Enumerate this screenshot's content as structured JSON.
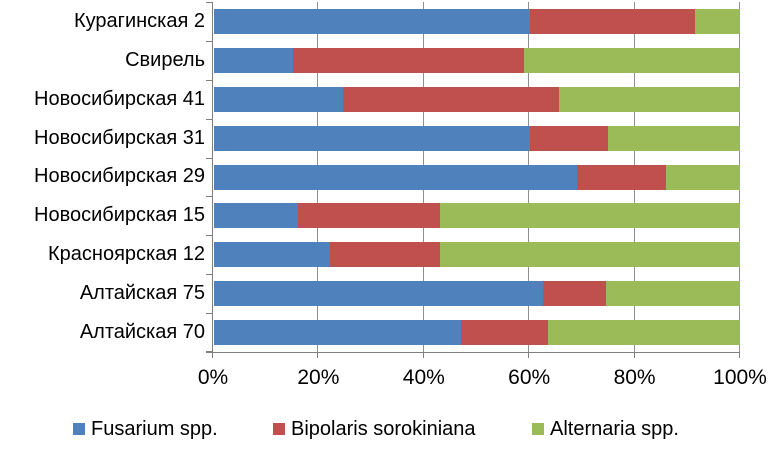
{
  "chart_data": {
    "type": "bar",
    "orientation": "horizontal",
    "stacked": true,
    "unit": "%",
    "title": "",
    "xlabel": "",
    "ylabel": "",
    "categories": [
      "Курагинская 2",
      "Свирель",
      "Новосибирская 41",
      "Новосибирская 31",
      "Новосибирская 29",
      "Новосибирская 15",
      "Красноярская 12",
      "Алтайская 75",
      "Алтайская 70"
    ],
    "series": [
      {
        "name": "Fusarium spp.",
        "color": "#4F81BD",
        "values": [
          60,
          15,
          24.5,
          60,
          69,
          16,
          22,
          62.5,
          47
        ]
      },
      {
        "name": "Bipolaris sorokiniana",
        "color": "#C0504D",
        "values": [
          31.5,
          44,
          41,
          15,
          17,
          27,
          21,
          12,
          16.5
        ]
      },
      {
        "name": "Alternaria spp.",
        "color": "#9BBB59",
        "values": [
          8.5,
          41,
          34.5,
          25,
          14,
          57,
          57,
          25.5,
          36.5
        ]
      }
    ],
    "xlim": [
      0,
      100
    ],
    "x_ticks": [
      {
        "label": "0%",
        "value": 0
      },
      {
        "label": "20%",
        "value": 20
      },
      {
        "label": "40%",
        "value": 40
      },
      {
        "label": "60%",
        "value": 60
      },
      {
        "label": "80%",
        "value": 80
      },
      {
        "label": "100%",
        "value": 100
      }
    ],
    "grid": true,
    "legend_position": "bottom",
    "colors": {
      "gridline": "#8F8F8F",
      "axis": "#7F7F7F",
      "text": "#000000",
      "background": "#FFFFFF"
    }
  }
}
